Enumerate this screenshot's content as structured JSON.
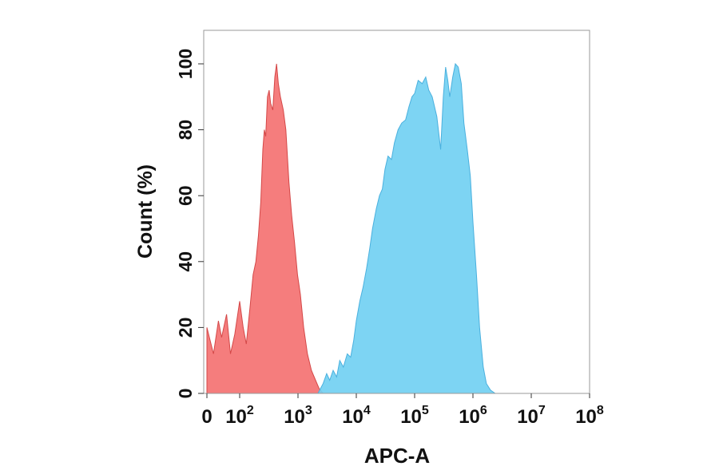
{
  "chart_data": {
    "type": "area",
    "xlabel": "APC-A",
    "ylabel": "Count  (%)",
    "x_scale": "biexponential",
    "ylim": [
      0,
      110
    ],
    "grid": false,
    "legend": "none",
    "x_ticks": [
      {
        "value": 0,
        "base": "0",
        "exp": ""
      },
      {
        "value": 100,
        "base": "10",
        "exp": "2"
      },
      {
        "value": 1000,
        "base": "10",
        "exp": "3"
      },
      {
        "value": 10000,
        "base": "10",
        "exp": "4"
      },
      {
        "value": 100000,
        "base": "10",
        "exp": "5"
      },
      {
        "value": 1000000,
        "base": "10",
        "exp": "6"
      },
      {
        "value": 10000000,
        "base": "10",
        "exp": "7"
      },
      {
        "value": 100000000,
        "base": "10",
        "exp": "8"
      }
    ],
    "y_ticks": [
      "0",
      "20",
      "40",
      "60",
      "80",
      "100"
    ],
    "series": [
      {
        "color": "#f47272",
        "stroke": "#d44848",
        "points": [
          [
            0,
            20
          ],
          [
            10,
            16
          ],
          [
            20,
            12
          ],
          [
            35,
            22
          ],
          [
            45,
            17
          ],
          [
            60,
            24
          ],
          [
            72,
            12
          ],
          [
            85,
            18
          ],
          [
            100,
            28
          ],
          [
            115,
            20
          ],
          [
            130,
            15
          ],
          [
            150,
            26
          ],
          [
            170,
            36
          ],
          [
            190,
            40
          ],
          [
            210,
            48
          ],
          [
            230,
            58
          ],
          [
            250,
            74
          ],
          [
            265,
            80
          ],
          [
            280,
            78
          ],
          [
            300,
            90
          ],
          [
            320,
            92
          ],
          [
            340,
            88
          ],
          [
            370,
            86
          ],
          [
            400,
            96
          ],
          [
            430,
            100
          ],
          [
            460,
            94
          ],
          [
            500,
            90
          ],
          [
            560,
            86
          ],
          [
            620,
            80
          ],
          [
            700,
            64
          ],
          [
            780,
            54
          ],
          [
            870,
            46
          ],
          [
            980,
            36
          ],
          [
            1100,
            30
          ],
          [
            1250,
            20
          ],
          [
            1450,
            12
          ],
          [
            1700,
            7
          ],
          [
            2000,
            4
          ],
          [
            2300,
            1.5
          ],
          [
            2700,
            0
          ]
        ]
      },
      {
        "color": "#72d0f2",
        "stroke": "#4ab0de",
        "points": [
          [
            2200,
            0
          ],
          [
            2700,
            3
          ],
          [
            3100,
            6
          ],
          [
            3500,
            4
          ],
          [
            4000,
            7
          ],
          [
            4600,
            5
          ],
          [
            5200,
            10
          ],
          [
            6000,
            8
          ],
          [
            7000,
            12
          ],
          [
            8000,
            11
          ],
          [
            9000,
            16
          ],
          [
            10000,
            22
          ],
          [
            11500,
            28
          ],
          [
            13000,
            32
          ],
          [
            15000,
            38
          ],
          [
            17000,
            44
          ],
          [
            19000,
            50
          ],
          [
            22000,
            56
          ],
          [
            25000,
            60
          ],
          [
            28000,
            62
          ],
          [
            31000,
            68
          ],
          [
            35000,
            72
          ],
          [
            40000,
            71
          ],
          [
            45000,
            76
          ],
          [
            52000,
            80
          ],
          [
            60000,
            82
          ],
          [
            70000,
            83
          ],
          [
            80000,
            87
          ],
          [
            90000,
            90
          ],
          [
            100000,
            91
          ],
          [
            115000,
            95
          ],
          [
            135000,
            94
          ],
          [
            155000,
            96
          ],
          [
            175000,
            92
          ],
          [
            200000,
            90
          ],
          [
            240000,
            84
          ],
          [
            280000,
            74
          ],
          [
            310000,
            90
          ],
          [
            340000,
            99
          ],
          [
            370000,
            95
          ],
          [
            400000,
            90
          ],
          [
            450000,
            96
          ],
          [
            500000,
            100
          ],
          [
            560000,
            99
          ],
          [
            630000,
            94
          ],
          [
            700000,
            82
          ],
          [
            800000,
            74
          ],
          [
            900000,
            66
          ],
          [
            1000000,
            52
          ],
          [
            1150000,
            36
          ],
          [
            1300000,
            20
          ],
          [
            1500000,
            8
          ],
          [
            1700000,
            3
          ],
          [
            2000000,
            1
          ],
          [
            2400000,
            0
          ]
        ]
      }
    ]
  }
}
